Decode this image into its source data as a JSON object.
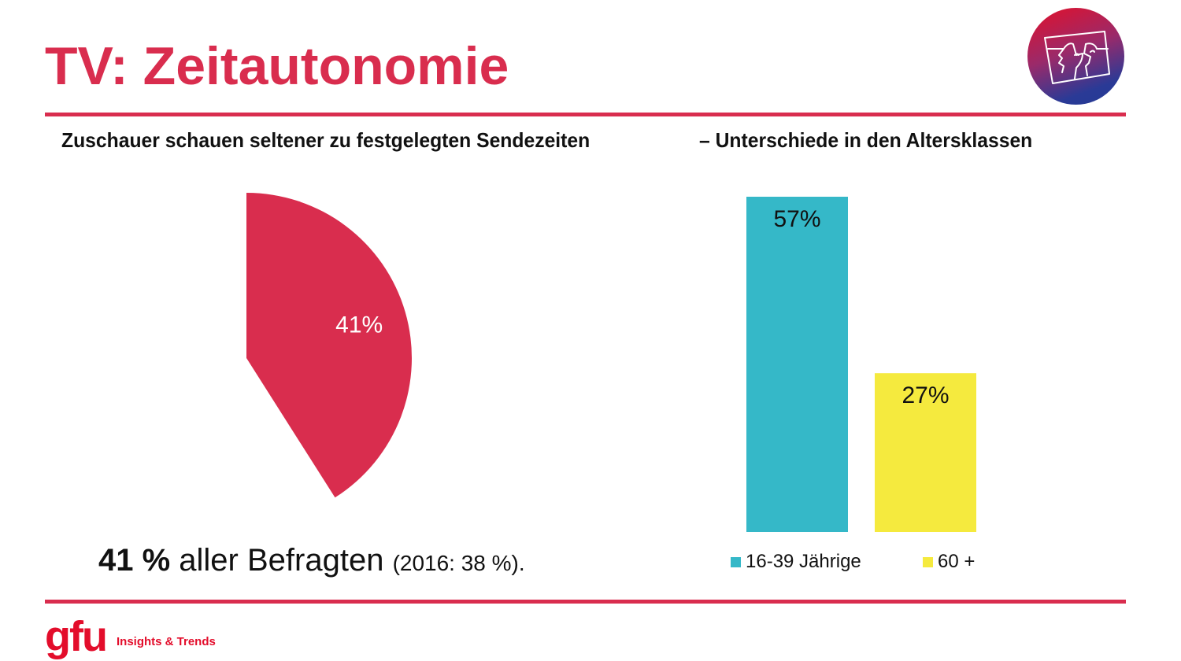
{
  "header": {
    "title": "TV: Zeitautonomie",
    "subtitle_left": "Zuschauer schauen seltener zu festgelegten Sendezeiten",
    "subtitle_right": "– Unterschiede in den Altersklassen"
  },
  "caption": {
    "bold": "41 %",
    "main": " aller Befragten ",
    "small": "(2016: 38 %)."
  },
  "footer": {
    "brand": "gfu",
    "tagline": "Insights & Trends"
  },
  "colors": {
    "accent": "#d92d4e",
    "brand_red": "#e30d2b",
    "bar_young": "#35b8c8",
    "bar_old": "#f5ea3e"
  },
  "chart_data": [
    {
      "type": "pie",
      "title": "",
      "slices": [
        {
          "label": "41%",
          "value": 41,
          "color": "#d92d4e"
        }
      ],
      "remainder_hidden": 59,
      "start_angle": "12 o'clock, clockwise"
    },
    {
      "type": "bar",
      "title": "",
      "categories": [
        "16-39 Jährige",
        "60 +"
      ],
      "values": [
        57,
        27
      ],
      "data_labels": [
        "57%",
        "27%"
      ],
      "colors": [
        "#35b8c8",
        "#f5ea3e"
      ],
      "xlabel": "",
      "ylabel": "",
      "ylim": [
        0,
        57
      ],
      "grid": false,
      "axes_visible": false,
      "legend": {
        "entries": [
          "16-39 Jährige",
          "60 +"
        ],
        "placement": "bottom"
      }
    }
  ]
}
